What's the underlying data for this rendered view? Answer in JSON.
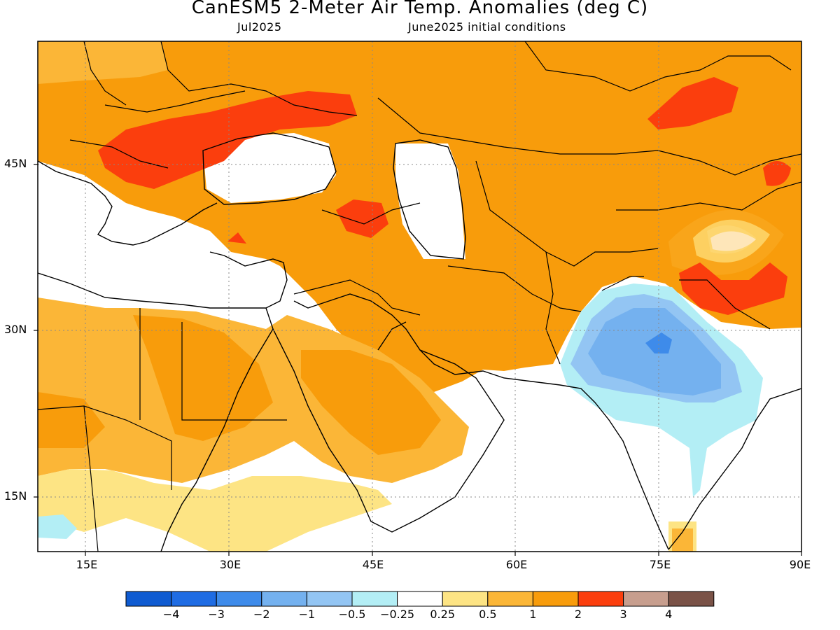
{
  "title": "CanESM5 2-Meter Air Temp. Anomalies (deg C)",
  "valid_month": "Jul2025",
  "init_conditions": "June2025 initial conditions",
  "lat_labels": [
    "45N",
    "30N",
    "15N"
  ],
  "lon_labels": [
    "15E",
    "30E",
    "45E",
    "60E",
    "75E",
    "90E"
  ],
  "colorbar": {
    "labels": [
      "-4",
      "-3",
      "-2",
      "-1",
      "-0.5",
      "-0.25",
      "0.25",
      "0.5",
      "1",
      "2",
      "3",
      "4"
    ],
    "colors": [
      "#0f5bd1",
      "#1f6ce3",
      "#3e8bea",
      "#74b1ef",
      "#93c5f3",
      "#b3eef5",
      "#ffffff",
      "#fde484",
      "#fbb637",
      "#f89c0b",
      "#fb3e0d",
      "#c79e8e",
      "#7a5247"
    ]
  },
  "map": {
    "extent": {
      "lon_min": 10,
      "lon_max": 90,
      "lat_min": 10,
      "lat_max": 55
    },
    "features": {
      "warm_anomaly": "Europe, Turkey, Middle East, Central Asia, North Africa",
      "strong_warm_anomaly": "Balkans, Ukraine, Caucasus, NW China, Tibet",
      "cool_anomaly": "Pakistan and northwest India"
    }
  }
}
